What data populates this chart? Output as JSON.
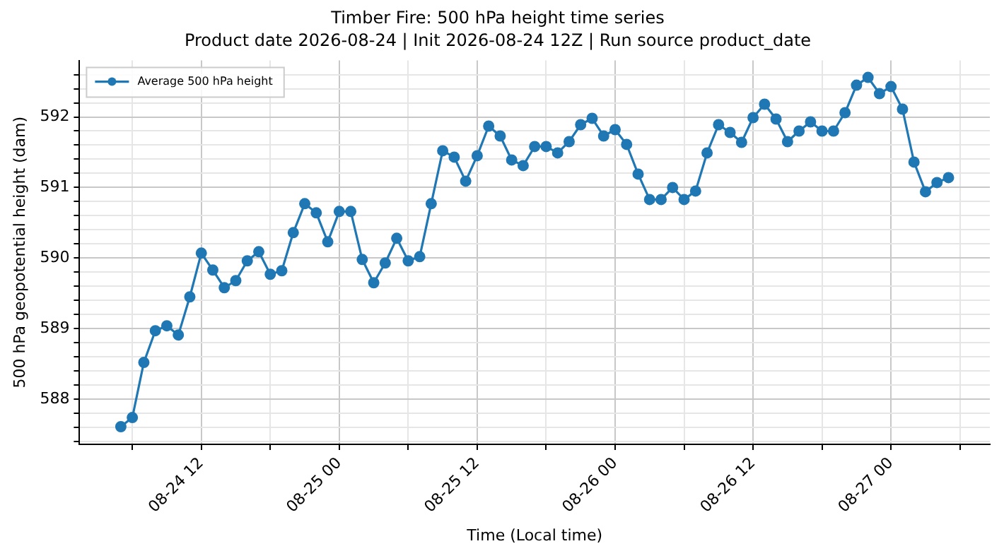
{
  "chart_data": {
    "type": "line",
    "title": "Timber Fire: 500 hPa height time series",
    "subtitle": "Product date 2026-08-24 | Init 2026-08-24 12Z | Run source product_date",
    "xlabel": "Time (Local time)",
    "ylabel": "500 hPa geopotential height (dam)",
    "x": [
      "2026-08-24T05:00",
      "2026-08-24T06:00",
      "2026-08-24T07:00",
      "2026-08-24T08:00",
      "2026-08-24T09:00",
      "2026-08-24T10:00",
      "2026-08-24T11:00",
      "2026-08-24T12:00",
      "2026-08-24T13:00",
      "2026-08-24T14:00",
      "2026-08-24T15:00",
      "2026-08-24T16:00",
      "2026-08-24T17:00",
      "2026-08-24T18:00",
      "2026-08-24T19:00",
      "2026-08-24T20:00",
      "2026-08-24T21:00",
      "2026-08-24T22:00",
      "2026-08-24T23:00",
      "2026-08-25T00:00",
      "2026-08-25T01:00",
      "2026-08-25T02:00",
      "2026-08-25T03:00",
      "2026-08-25T04:00",
      "2026-08-25T05:00",
      "2026-08-25T06:00",
      "2026-08-25T07:00",
      "2026-08-25T08:00",
      "2026-08-25T09:00",
      "2026-08-25T10:00",
      "2026-08-25T11:00",
      "2026-08-25T12:00",
      "2026-08-25T13:00",
      "2026-08-25T14:00",
      "2026-08-25T15:00",
      "2026-08-25T16:00",
      "2026-08-25T17:00",
      "2026-08-25T18:00",
      "2026-08-25T19:00",
      "2026-08-25T20:00",
      "2026-08-25T21:00",
      "2026-08-25T22:00",
      "2026-08-25T23:00",
      "2026-08-26T00:00",
      "2026-08-26T01:00",
      "2026-08-26T02:00",
      "2026-08-26T03:00",
      "2026-08-26T04:00",
      "2026-08-26T05:00",
      "2026-08-26T06:00",
      "2026-08-26T07:00",
      "2026-08-26T08:00",
      "2026-08-26T09:00",
      "2026-08-26T10:00",
      "2026-08-26T11:00",
      "2026-08-26T12:00",
      "2026-08-26T13:00",
      "2026-08-26T14:00",
      "2026-08-26T15:00",
      "2026-08-26T16:00",
      "2026-08-26T17:00",
      "2026-08-26T18:00",
      "2026-08-26T19:00",
      "2026-08-26T20:00",
      "2026-08-26T21:00",
      "2026-08-26T22:00",
      "2026-08-26T23:00",
      "2026-08-27T00:00",
      "2026-08-27T01:00",
      "2026-08-27T02:00",
      "2026-08-27T03:00",
      "2026-08-27T04:00",
      "2026-08-27T05:00"
    ],
    "series": [
      {
        "name": "Average 500 hPa height",
        "color": "#1f77b4",
        "values": [
          587.61,
          587.74,
          588.52,
          588.97,
          589.04,
          588.91,
          589.45,
          590.07,
          589.83,
          589.58,
          589.68,
          589.96,
          590.09,
          589.77,
          589.82,
          590.36,
          590.77,
          590.64,
          590.23,
          590.66,
          590.66,
          589.98,
          589.65,
          589.93,
          590.28,
          589.96,
          590.02,
          590.77,
          591.52,
          591.43,
          591.09,
          591.45,
          591.87,
          591.73,
          591.39,
          591.31,
          591.58,
          591.58,
          591.49,
          591.65,
          591.89,
          591.98,
          591.73,
          591.82,
          591.61,
          591.19,
          590.83,
          590.83,
          591.0,
          590.83,
          590.95,
          591.49,
          591.89,
          591.78,
          591.64,
          591.99,
          592.18,
          591.97,
          591.65,
          591.8,
          591.93,
          591.8,
          591.8,
          592.06,
          592.45,
          592.56,
          592.33,
          592.43,
          592.11,
          591.36,
          590.94,
          591.07,
          591.14
        ]
      }
    ],
    "xlim": [
      "2026-08-24T01:24",
      "2026-08-27T08:36"
    ],
    "xticks": [
      {
        "value": "2026-08-24T06:00",
        "label": null
      },
      {
        "value": "2026-08-24T12:00",
        "label": "08-24 12"
      },
      {
        "value": "2026-08-24T18:00",
        "label": null
      },
      {
        "value": "2026-08-25T00:00",
        "label": "08-25 00"
      },
      {
        "value": "2026-08-25T06:00",
        "label": null
      },
      {
        "value": "2026-08-25T12:00",
        "label": "08-25 12"
      },
      {
        "value": "2026-08-25T18:00",
        "label": null
      },
      {
        "value": "2026-08-26T00:00",
        "label": "08-26 00"
      },
      {
        "value": "2026-08-26T06:00",
        "label": null
      },
      {
        "value": "2026-08-26T12:00",
        "label": "08-26 12"
      },
      {
        "value": "2026-08-26T18:00",
        "label": null
      },
      {
        "value": "2026-08-27T00:00",
        "label": "08-27 00"
      },
      {
        "value": "2026-08-27T06:00",
        "label": null
      }
    ],
    "ylim": [
      587.36,
      592.8
    ],
    "yticks": [
      {
        "value": 587.4,
        "label": null
      },
      {
        "value": 587.6,
        "label": null
      },
      {
        "value": 587.8,
        "label": null
      },
      588,
      {
        "value": 588.2,
        "label": null
      },
      {
        "value": 588.4,
        "label": null
      },
      {
        "value": 588.6,
        "label": null
      },
      {
        "value": 588.8,
        "label": null
      },
      589,
      {
        "value": 589.2,
        "label": null
      },
      {
        "value": 589.4,
        "label": null
      },
      {
        "value": 589.6,
        "label": null
      },
      {
        "value": 589.8,
        "label": null
      },
      590,
      {
        "value": 590.2,
        "label": null
      },
      {
        "value": 590.4,
        "label": null
      },
      {
        "value": 590.6,
        "label": null
      },
      {
        "value": 590.8,
        "label": null
      },
      591,
      {
        "value": 591.2,
        "label": null
      },
      {
        "value": 591.4,
        "label": null
      },
      {
        "value": 591.6,
        "label": null
      },
      {
        "value": 591.8,
        "label": null
      },
      592,
      {
        "value": 592.2,
        "label": null
      },
      {
        "value": 592.4,
        "label": null
      },
      {
        "value": 592.6,
        "label": null
      }
    ],
    "grid": true,
    "legend": "top left",
    "marker": "circle",
    "line_style": "solid"
  }
}
